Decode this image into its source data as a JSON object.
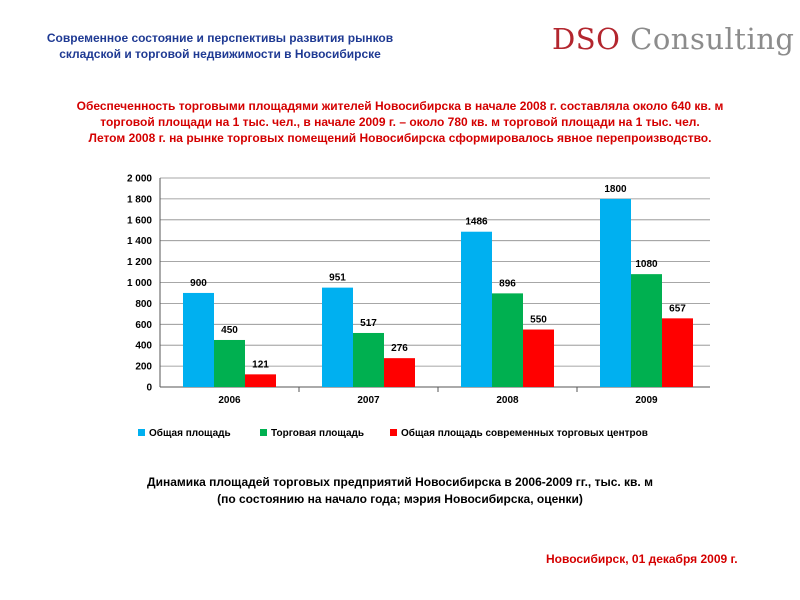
{
  "header": {
    "title_line1": "Современное состояние и перспективы развития рынков",
    "title_line2": "складской и торговой недвижимости в Новосибирске"
  },
  "logo": {
    "accent_text": "DSO",
    "rest_text": "Consulting",
    "colors": {
      "accent": "#b3262e",
      "text": "#8c8c8c"
    }
  },
  "intro": {
    "line1": "Обеспеченность торговыми площадями жителей Новосибирска в  начале 2008 г. составляла около 640 кв. м",
    "line2": "торговой площади на 1 тыс. чел., в начале 2009 г. – около 780 кв. м торговой площади на 1 тыс. чел.",
    "line3": "Летом 2008 г. на рынке торговых помещений Новосибирска сформировалось явное перепроизводство."
  },
  "caption": {
    "line1": "Динамика площадей торговых предприятий Новосибирска в 2006-2009 гг., тыс. кв. м",
    "line2": "(по состоянию на начало года; мэрия Новосибирска, оценки)"
  },
  "footer": {
    "text": "Новосибирск, 01 декабря 2009 г."
  },
  "chart_data": {
    "type": "bar",
    "title": "",
    "xlabel": "",
    "ylabel": "",
    "categories": [
      "2006",
      "2007",
      "2008",
      "2009"
    ],
    "ylim": [
      0,
      2000
    ],
    "yticks": [
      0,
      200,
      400,
      600,
      800,
      1000,
      1200,
      1400,
      1600,
      1800,
      2000
    ],
    "ytick_labels": [
      "0",
      "200",
      "400",
      "600",
      "800",
      "1 000",
      "1 200",
      "1 400",
      "1 600",
      "1 800",
      "2 000"
    ],
    "grid": true,
    "legend_position": "bottom",
    "series": [
      {
        "name": "Общая площадь",
        "values": [
          900,
          951,
          1486,
          1800
        ],
        "color": "#00b0f0"
      },
      {
        "name": "Торговая площадь",
        "values": [
          450,
          517,
          896,
          1080
        ],
        "color": "#00b050"
      },
      {
        "name": "Общая площадь современных торговых центров",
        "values": [
          121,
          276,
          550,
          657
        ],
        "color": "#ff0000"
      }
    ]
  }
}
